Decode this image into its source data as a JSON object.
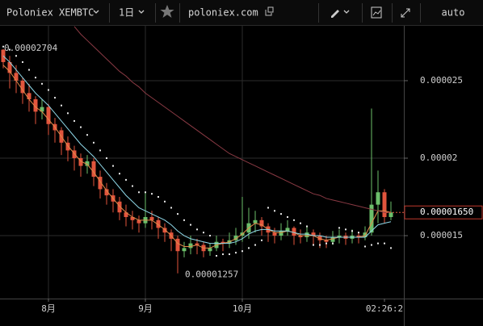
{
  "toolbar": {
    "symbol": "Poloniex XEMBTC",
    "interval": "1日",
    "site": "poloniex.com",
    "scale": "auto"
  },
  "chart_data": {
    "type": "candlestick",
    "categories": [
      null,
      null,
      null,
      null,
      null,
      null,
      null,
      "8月",
      null,
      null,
      null,
      null,
      null,
      null,
      null,
      null,
      null,
      null,
      null,
      null,
      null,
      null,
      "9月",
      null,
      null,
      null,
      null,
      null,
      null,
      null,
      null,
      null,
      null,
      null,
      null,
      null,
      null,
      "10月",
      null,
      null,
      null,
      null,
      null,
      null,
      null,
      null,
      null,
      null,
      null,
      null,
      null,
      null,
      null,
      null,
      null,
      null,
      null,
      null,
      null,
      "02:26:2",
      null
    ],
    "candles": [
      [
        2.7e-05,
        2.704e-05,
        2.58e-05,
        2.62e-05
      ],
      [
        2.62e-05,
        2.66e-05,
        2.45e-05,
        2.55e-05
      ],
      [
        2.55e-05,
        2.6e-05,
        2.42e-05,
        2.5e-05
      ],
      [
        2.5e-05,
        2.52e-05,
        2.35e-05,
        2.42e-05
      ],
      [
        2.42e-05,
        2.48e-05,
        2.3e-05,
        2.38e-05
      ],
      [
        2.38e-05,
        2.4e-05,
        2.22e-05,
        2.3e-05
      ],
      [
        2.3e-05,
        2.38e-05,
        2.25e-05,
        2.33e-05
      ],
      [
        2.33e-05,
        2.35e-05,
        2.15e-05,
        2.22e-05
      ],
      [
        2.22e-05,
        2.26e-05,
        2.1e-05,
        2.18e-05
      ],
      [
        2.18e-05,
        2.2e-05,
        2.02e-05,
        2.1e-05
      ],
      [
        2.1e-05,
        2.14e-05,
        1.98e-05,
        2.05e-05
      ],
      [
        2.05e-05,
        2.08e-05,
        1.92e-05,
        2e-05
      ],
      [
        2e-05,
        2.03e-05,
        1.88e-05,
        1.95e-05
      ],
      [
        1.95e-05,
        2.02e-05,
        1.9e-05,
        1.98e-05
      ],
      [
        1.98e-05,
        2e-05,
        1.82e-05,
        1.88e-05
      ],
      [
        1.88e-05,
        1.92e-05,
        1.74e-05,
        1.8e-05
      ],
      [
        1.8e-05,
        1.84e-05,
        1.7e-05,
        1.76e-05
      ],
      [
        1.76e-05,
        1.8e-05,
        1.65e-05,
        1.72e-05
      ],
      [
        1.72e-05,
        1.75e-05,
        1.6e-05,
        1.65e-05
      ],
      [
        1.65e-05,
        1.7e-05,
        1.56e-05,
        1.62e-05
      ],
      [
        1.62e-05,
        1.66e-05,
        1.54e-05,
        1.6e-05
      ],
      [
        1.6e-05,
        1.63e-05,
        1.52e-05,
        1.58e-05
      ],
      [
        1.58e-05,
        1.78e-05,
        1.55e-05,
        1.62e-05
      ],
      [
        1.62e-05,
        1.66e-05,
        1.54e-05,
        1.6e-05
      ],
      [
        1.6e-05,
        1.62e-05,
        1.48e-05,
        1.55e-05
      ],
      [
        1.55e-05,
        1.58e-05,
        1.46e-05,
        1.52e-05
      ],
      [
        1.52e-05,
        1.54e-05,
        1.4e-05,
        1.48e-05
      ],
      [
        1.48e-05,
        1.5e-05,
        1.257e-05,
        1.4e-05
      ],
      [
        1.4e-05,
        1.46e-05,
        1.36e-05,
        1.42e-05
      ],
      [
        1.42e-05,
        1.5e-05,
        1.38e-05,
        1.45e-05
      ],
      [
        1.45e-05,
        1.48e-05,
        1.38e-05,
        1.44e-05
      ],
      [
        1.44e-05,
        1.46e-05,
        1.36e-05,
        1.4e-05
      ],
      [
        1.4e-05,
        1.45e-05,
        1.37e-05,
        1.42e-05
      ],
      [
        1.42e-05,
        1.5e-05,
        1.4e-05,
        1.46e-05
      ],
      [
        1.46e-05,
        1.48e-05,
        1.4e-05,
        1.45e-05
      ],
      [
        1.45e-05,
        1.52e-05,
        1.42e-05,
        1.47e-05
      ],
      [
        1.47e-05,
        1.55e-05,
        1.44e-05,
        1.5e-05
      ],
      [
        1.5e-05,
        1.75e-05,
        1.46e-05,
        1.52e-05
      ],
      [
        1.52e-05,
        1.68e-05,
        1.48e-05,
        1.58e-05
      ],
      [
        1.58e-05,
        1.66e-05,
        1.52e-05,
        1.6e-05
      ],
      [
        1.6e-05,
        1.62e-05,
        1.5e-05,
        1.56e-05
      ],
      [
        1.56e-05,
        1.58e-05,
        1.46e-05,
        1.52e-05
      ],
      [
        1.52e-05,
        1.55e-05,
        1.45e-05,
        1.5e-05
      ],
      [
        1.5e-05,
        1.58e-05,
        1.47e-05,
        1.53e-05
      ],
      [
        1.53e-05,
        1.6e-05,
        1.5e-05,
        1.55e-05
      ],
      [
        1.55e-05,
        1.56e-05,
        1.44e-05,
        1.5e-05
      ],
      [
        1.5e-05,
        1.54e-05,
        1.45e-05,
        1.49e-05
      ],
      [
        1.49e-05,
        1.56e-05,
        1.46e-05,
        1.52e-05
      ],
      [
        1.52e-05,
        1.54e-05,
        1.44e-05,
        1.5e-05
      ],
      [
        1.5e-05,
        1.52e-05,
        1.42e-05,
        1.47e-05
      ],
      [
        1.47e-05,
        1.5e-05,
        1.42e-05,
        1.46e-05
      ],
      [
        1.46e-05,
        1.53e-05,
        1.44e-05,
        1.49e-05
      ],
      [
        1.49e-05,
        1.54e-05,
        1.45e-05,
        1.5e-05
      ],
      [
        1.5e-05,
        1.52e-05,
        1.44e-05,
        1.48e-05
      ],
      [
        1.48e-05,
        1.54e-05,
        1.45e-05,
        1.5e-05
      ],
      [
        1.5e-05,
        1.52e-05,
        1.45e-05,
        1.49e-05
      ],
      [
        1.49e-05,
        1.56e-05,
        1.47e-05,
        1.52e-05
      ],
      [
        1.52e-05,
        2.32e-05,
        1.5e-05,
        1.7e-05
      ],
      [
        1.7e-05,
        1.92e-05,
        1.58e-05,
        1.78e-05
      ],
      [
        1.78e-05,
        1.8e-05,
        1.58e-05,
        1.62e-05
      ],
      [
        1.62e-05,
        1.72e-05,
        1.6e-05,
        1.65e-05
      ]
    ],
    "up_color": "#6cbf6a",
    "down_color": "#e2553d",
    "lines": [
      {
        "color": "#e08a4a",
        "style": "solid",
        "values": [
          2.6e-05,
          2.56e-05,
          2.5e-05,
          2.44e-05,
          2.38e-05,
          2.33e-05,
          2.3e-05,
          2.25e-05,
          2.2e-05,
          2.14e-05,
          2.08e-05,
          2.03e-05,
          1.98e-05,
          1.96e-05,
          1.91e-05,
          1.85e-05,
          1.79e-05,
          1.74e-05,
          1.69e-05,
          1.65e-05,
          1.62e-05,
          1.6e-05,
          1.6e-05,
          1.6e-05,
          1.57e-05,
          1.54e-05,
          1.5e-05,
          1.45e-05,
          1.43e-05,
          1.43e-05,
          1.44e-05,
          1.42e-05,
          1.42e-05,
          1.44e-05,
          1.45e-05,
          1.46e-05,
          1.48e-05,
          1.51e-05,
          1.55e-05,
          1.58e-05,
          1.57e-05,
          1.54e-05,
          1.52e-05,
          1.52e-05,
          1.53e-05,
          1.52e-05,
          1.5e-05,
          1.5e-05,
          1.5e-05,
          1.48e-05,
          1.47e-05,
          1.48e-05,
          1.49e-05,
          1.49e-05,
          1.49e-05,
          1.49e-05,
          1.5e-05,
          1.58e-05,
          1.66e-05,
          1.66e-05,
          1.65e-05
        ]
      },
      {
        "color": "#8fd8e8",
        "style": "solid",
        "values": [
          2.66e-05,
          2.62e-05,
          2.57e-05,
          2.52e-05,
          2.47e-05,
          2.42e-05,
          2.38e-05,
          2.34e-05,
          2.29e-05,
          2.24e-05,
          2.19e-05,
          2.14e-05,
          2.09e-05,
          2.05e-05,
          2.01e-05,
          1.96e-05,
          1.91e-05,
          1.86e-05,
          1.81e-05,
          1.76e-05,
          1.72e-05,
          1.68e-05,
          1.66e-05,
          1.64e-05,
          1.62e-05,
          1.6e-05,
          1.57e-05,
          1.53e-05,
          1.5e-05,
          1.48e-05,
          1.47e-05,
          1.46e-05,
          1.45e-05,
          1.45e-05,
          1.45e-05,
          1.45e-05,
          1.46e-05,
          1.48e-05,
          1.51e-05,
          1.53e-05,
          1.54e-05,
          1.54e-05,
          1.53e-05,
          1.53e-05,
          1.53e-05,
          1.52e-05,
          1.51e-05,
          1.51e-05,
          1.5e-05,
          1.5e-05,
          1.49e-05,
          1.49e-05,
          1.49e-05,
          1.49e-05,
          1.49e-05,
          1.49e-05,
          1.49e-05,
          1.53e-05,
          1.57e-05,
          1.58e-05,
          1.59e-05
        ]
      },
      {
        "color": "#8a3a44",
        "style": "solid",
        "values": [
          null,
          null,
          null,
          null,
          null,
          null,
          null,
          null,
          null,
          null,
          null,
          2.85e-05,
          2.8e-05,
          2.76e-05,
          2.72e-05,
          2.68e-05,
          2.64e-05,
          2.6e-05,
          2.56e-05,
          2.53e-05,
          2.49e-05,
          2.46e-05,
          2.42e-05,
          2.39e-05,
          2.36e-05,
          2.33e-05,
          2.3e-05,
          2.27e-05,
          2.24e-05,
          2.21e-05,
          2.18e-05,
          2.15e-05,
          2.12e-05,
          2.09e-05,
          2.06e-05,
          2.03e-05,
          2.01e-05,
          1.99e-05,
          1.97e-05,
          1.95e-05,
          1.93e-05,
          1.91e-05,
          1.89e-05,
          1.87e-05,
          1.85e-05,
          1.83e-05,
          1.81e-05,
          1.79e-05,
          1.77e-05,
          1.76e-05,
          1.74e-05,
          1.73e-05,
          1.72e-05,
          1.71e-05,
          1.7e-05,
          1.69e-05,
          1.68e-05,
          1.67e-05,
          1.66e-05,
          1.65e-05,
          1.65e-05
        ]
      },
      {
        "color": "#e8e8e8",
        "style": "dots",
        "values": [
          2.72e-05,
          2.7e-05,
          2.66e-05,
          2.62e-05,
          2.57e-05,
          2.52e-05,
          2.48e-05,
          2.44e-05,
          2.39e-05,
          2.34e-05,
          2.29e-05,
          2.24e-05,
          2.2e-05,
          2.15e-05,
          2.1e-05,
          2.05e-05,
          2e-05,
          1.95e-05,
          1.9e-05,
          1.86e-05,
          1.82e-05,
          1.78e-05,
          1.78e-05,
          1.77e-05,
          1.75e-05,
          1.72e-05,
          1.68e-05,
          1.64e-05,
          1.6e-05,
          1.57e-05,
          1.54e-05,
          1.52e-05,
          1.5e-05,
          1.37e-05,
          1.38e-05,
          1.38e-05,
          1.39e-05,
          1.4e-05,
          1.42e-05,
          1.44e-05,
          1.47e-05,
          1.68e-05,
          1.66e-05,
          1.64e-05,
          1.62e-05,
          1.6e-05,
          1.58e-05,
          1.56e-05,
          1.44e-05,
          1.44e-05,
          1.45e-05,
          1.45e-05,
          1.55e-05,
          1.54e-05,
          1.53e-05,
          1.52e-05,
          1.43e-05,
          1.44e-05,
          1.45e-05,
          1.45e-05,
          1.42e-05
        ]
      }
    ],
    "ylim": [
      1.094e-05,
      2.854e-05
    ],
    "yticks": [
      1.5e-05,
      2e-05,
      2.5e-05
    ],
    "grid": true,
    "high_label": 2.704e-05,
    "low_label": 1.257e-05,
    "last_price": {
      "value": 1.65e-05,
      "label": "0.00001650"
    }
  }
}
